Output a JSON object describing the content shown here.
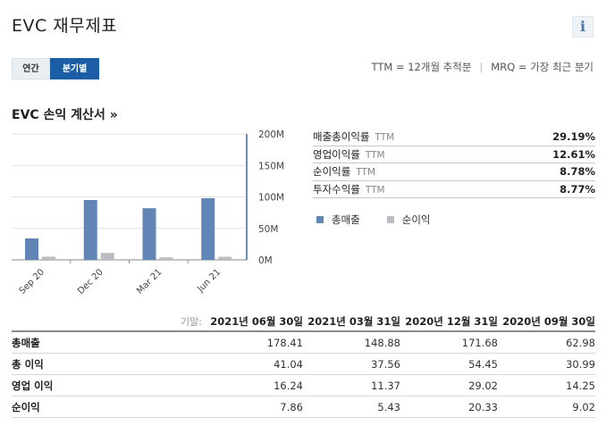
{
  "page": {
    "title": "EVC 재무제표",
    "info_icon": "i"
  },
  "toggle": {
    "annual_label": "연간",
    "quarterly_label": "분기별",
    "active": "quarterly"
  },
  "legend_note": {
    "ttm": "TTM = 12개월 추적분",
    "separator": "|",
    "mrq": "MRQ = 가장 최근 분기"
  },
  "section": {
    "title": "EVC 손익 계산서 »"
  },
  "chart_data": {
    "type": "bar",
    "categories": [
      "Sep 20",
      "Dec 20",
      "Mar 21",
      "Jun 21"
    ],
    "series": [
      {
        "name": "총매출",
        "values": [
          34,
          95,
          82,
          98
        ],
        "color": "#6185b4"
      },
      {
        "name": "순이익",
        "values": [
          5,
          11,
          4,
          5
        ],
        "color": "#b9bcc1"
      }
    ],
    "y_ticks": [
      "200M",
      "150M",
      "100M",
      "50M",
      "0M"
    ],
    "ylim": [
      0,
      200
    ],
    "grid": true,
    "legend": "below-right"
  },
  "ratios": [
    {
      "label": "매출총이익률",
      "period": "TTM",
      "value": "29.19%"
    },
    {
      "label": "영업이익률",
      "period": "TTM",
      "value": "12.61%"
    },
    {
      "label": "순이익률",
      "period": "TTM",
      "value": "8.78%"
    },
    {
      "label": "투자수익률",
      "period": "TTM",
      "value": "8.77%"
    }
  ],
  "table": {
    "period_label": "기말:",
    "columns": [
      "2021년 06월 30일",
      "2021년 03월 31일",
      "2020년 12월 31일",
      "2020년 09월 30일"
    ],
    "rows": [
      {
        "label": "총매출",
        "values": [
          "178.41",
          "148.88",
          "171.68",
          "62.98"
        ]
      },
      {
        "label": "총 이익",
        "values": [
          "41.04",
          "37.56",
          "54.45",
          "30.99"
        ]
      },
      {
        "label": "영업 이익",
        "values": [
          "16.24",
          "11.37",
          "29.02",
          "14.25"
        ]
      },
      {
        "label": "순이익",
        "values": [
          "7.86",
          "5.43",
          "20.33",
          "9.02"
        ]
      }
    ]
  }
}
